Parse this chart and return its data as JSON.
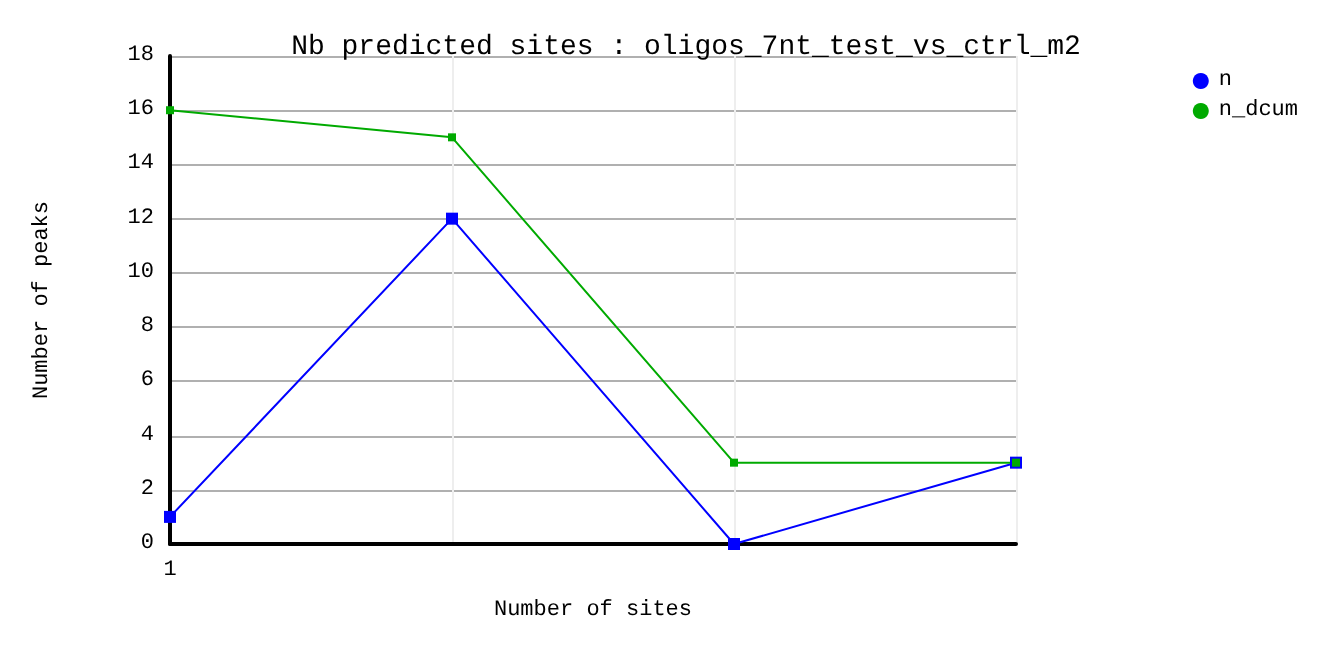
{
  "chart_data": {
    "type": "line",
    "title": "Nb predicted sites : oligos_7nt_test_vs_ctrl_m2",
    "xlabel": "Number of sites",
    "ylabel": "Number of peaks",
    "categories": [
      "1",
      null,
      null,
      null
    ],
    "series": [
      {
        "name": "n",
        "color": "#0000ff",
        "values": [
          1,
          12,
          0,
          3
        ]
      },
      {
        "name": "n_dcum",
        "color": "#00aa00",
        "values": [
          16,
          15,
          3,
          3
        ]
      }
    ],
    "ylim": [
      0,
      18
    ],
    "yticks": [
      0,
      2,
      4,
      6,
      8,
      10,
      12,
      14,
      16,
      18
    ],
    "grid": true,
    "legend": "top right",
    "marker": "square",
    "line_style": "solid"
  }
}
